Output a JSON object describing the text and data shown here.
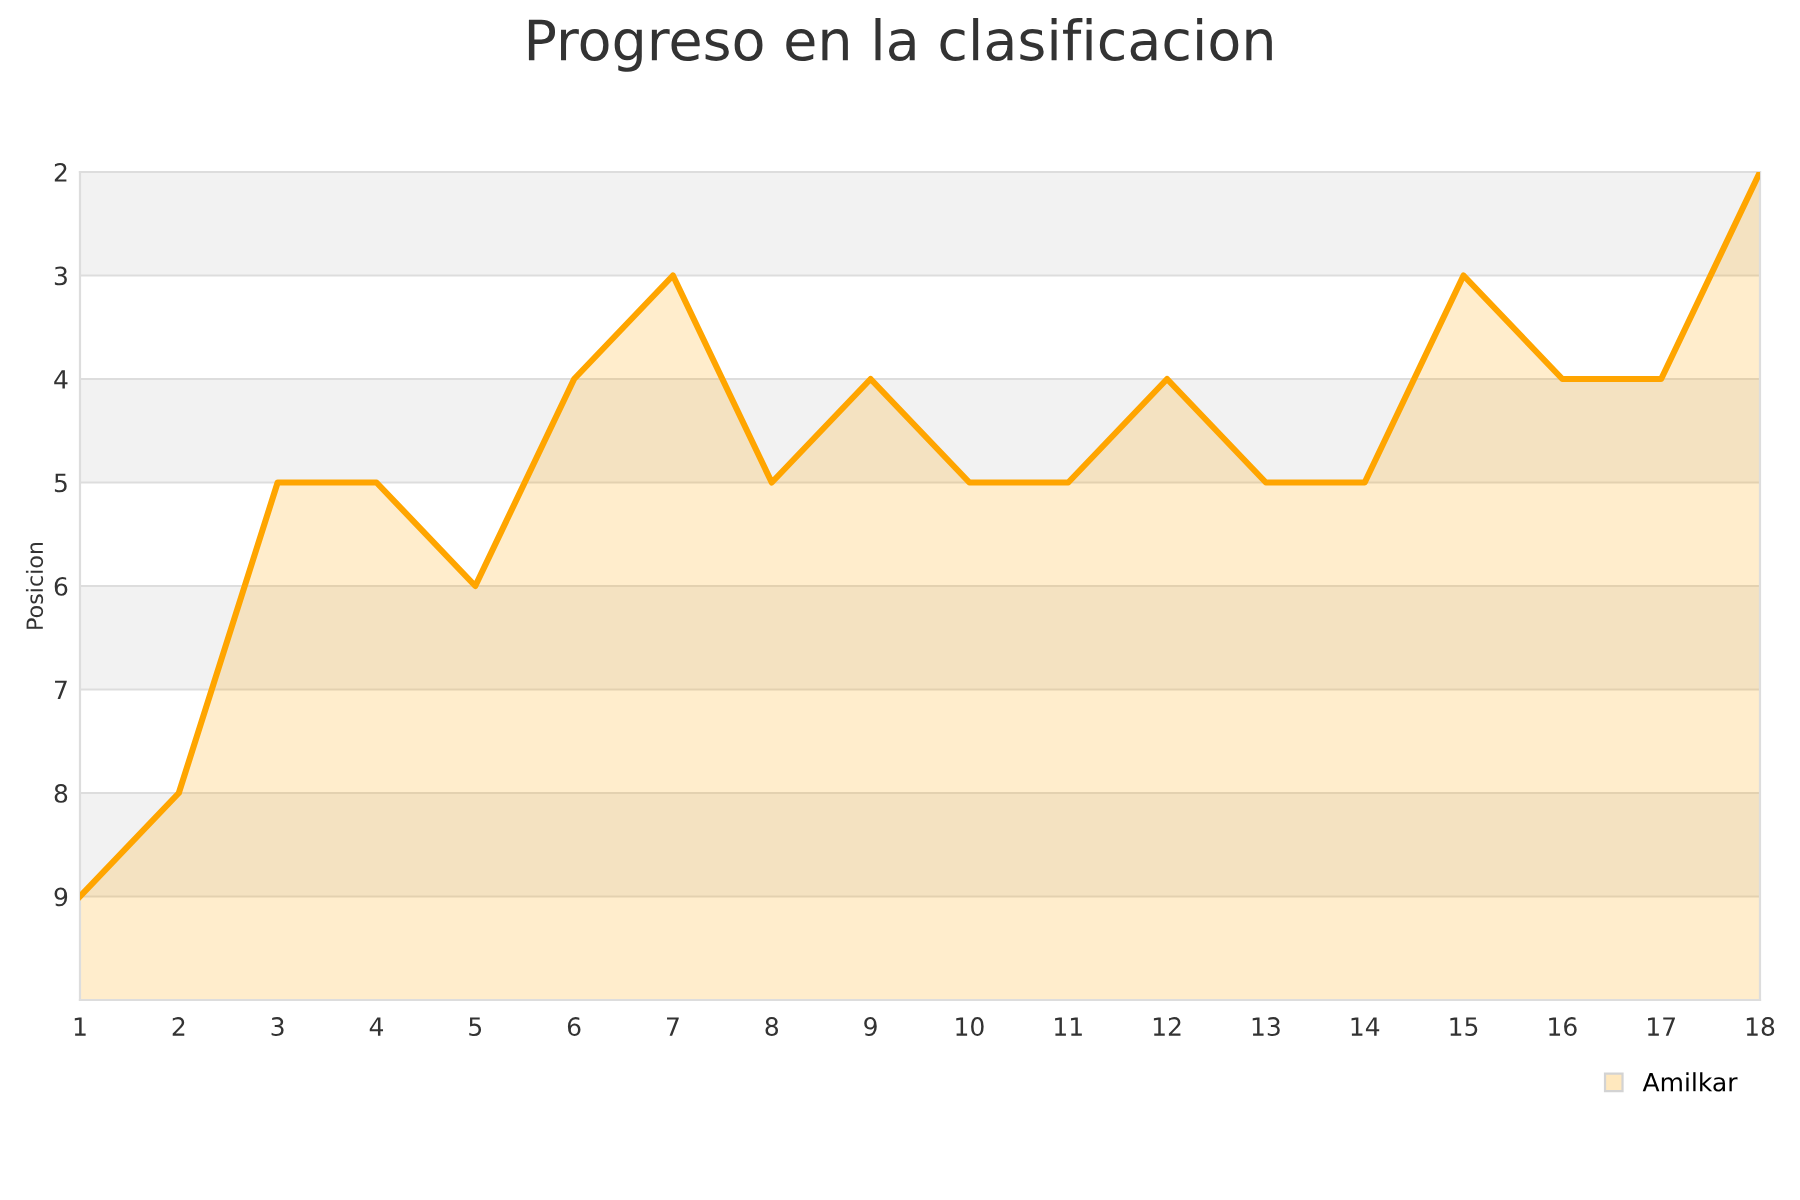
{
  "chart_data": {
    "type": "area",
    "title": "Progreso en la clasificacion",
    "ylabel": "Posicion",
    "x": [
      1,
      2,
      3,
      4,
      5,
      6,
      7,
      8,
      9,
      10,
      11,
      12,
      13,
      14,
      15,
      16,
      17,
      18
    ],
    "series": [
      {
        "name": "Amilkar",
        "color": "#ffa500",
        "values": [
          9,
          8,
          5,
          5,
          6,
          4,
          3,
          5,
          4,
          5,
          5,
          4,
          5,
          5,
          3,
          4,
          4,
          2
        ]
      }
    ],
    "xlim": [
      1,
      18
    ],
    "xticks": [
      1,
      2,
      3,
      4,
      5,
      6,
      7,
      8,
      9,
      10,
      11,
      12,
      13,
      14,
      15,
      16,
      17,
      18
    ],
    "ylim": [
      10,
      2
    ],
    "yticks": [
      2,
      3,
      4,
      5,
      6,
      7,
      8,
      9
    ],
    "bands": [
      {
        "axis": "y",
        "from": 2,
        "to": 3,
        "color": "#f2f2f2"
      },
      {
        "axis": "y",
        "from": 4,
        "to": 5,
        "color": "#f2f2f2"
      },
      {
        "axis": "y",
        "from": 6,
        "to": 7,
        "color": "#f2f2f2"
      },
      {
        "axis": "y",
        "from": 8,
        "to": 9,
        "color": "#f2f2f2"
      }
    ],
    "grid": "y",
    "legend": "bottom right",
    "marker": "none",
    "line_style": "solid"
  }
}
